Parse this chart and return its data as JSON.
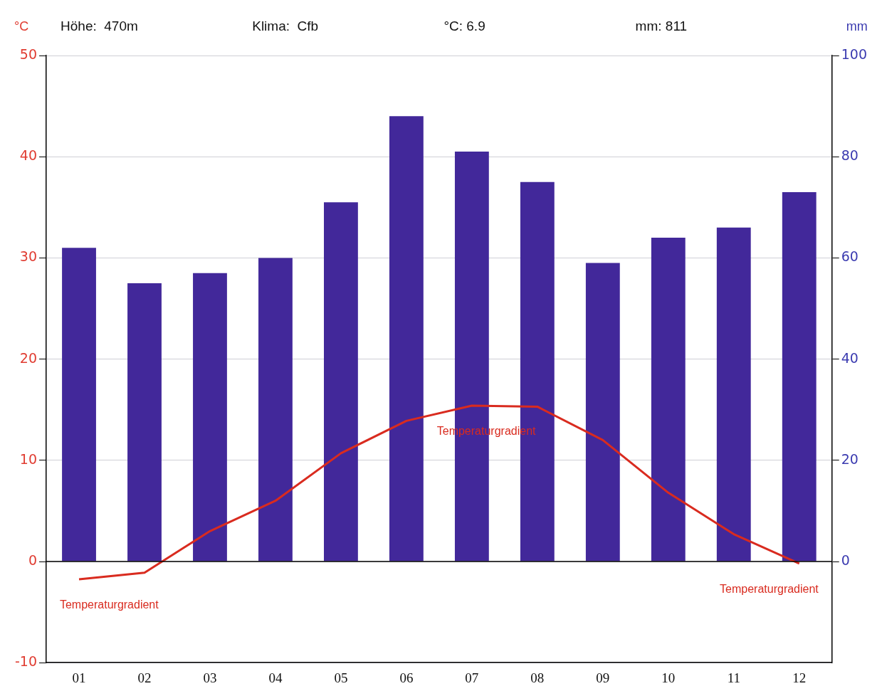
{
  "chart_data": {
    "type": "bar",
    "categories": [
      "01",
      "02",
      "03",
      "04",
      "05",
      "06",
      "07",
      "08",
      "09",
      "10",
      "11",
      "12"
    ],
    "series": [
      {
        "axis": "y2",
        "color": "#42289a",
        "values": [
          62,
          55,
          57,
          60,
          71,
          88,
          81,
          75,
          59,
          64,
          66,
          73
        ]
      },
      {
        "type": "line",
        "axis": "y",
        "color": "#d92b1f",
        "values": [
          -1.75,
          -1.1,
          3.0,
          6.0,
          10.7,
          13.9,
          15.4,
          15.3,
          12.0,
          6.8,
          2.7,
          -0.2
        ]
      }
    ],
    "ylabel": "°C",
    "y2label": "mm",
    "ylim": [
      -10,
      50
    ],
    "yticks": [
      -10,
      0,
      10,
      20,
      30,
      40,
      50
    ],
    "y2lim": [
      -20,
      100
    ],
    "y2ticks": [
      0,
      20,
      40,
      60,
      80,
      100
    ],
    "grid": "y",
    "legend": false,
    "marker": "none",
    "line_style": "solid",
    "ref_lines": [
      {
        "axis": "y",
        "value": 0,
        "color": "#000000"
      }
    ],
    "annotations": [
      "Höhe:  470m",
      "Klima:  Cfb",
      "°C: 6.9",
      "mm: 811",
      "Temperaturgradient",
      "Temperaturgradient",
      "Temperaturgradient"
    ]
  }
}
